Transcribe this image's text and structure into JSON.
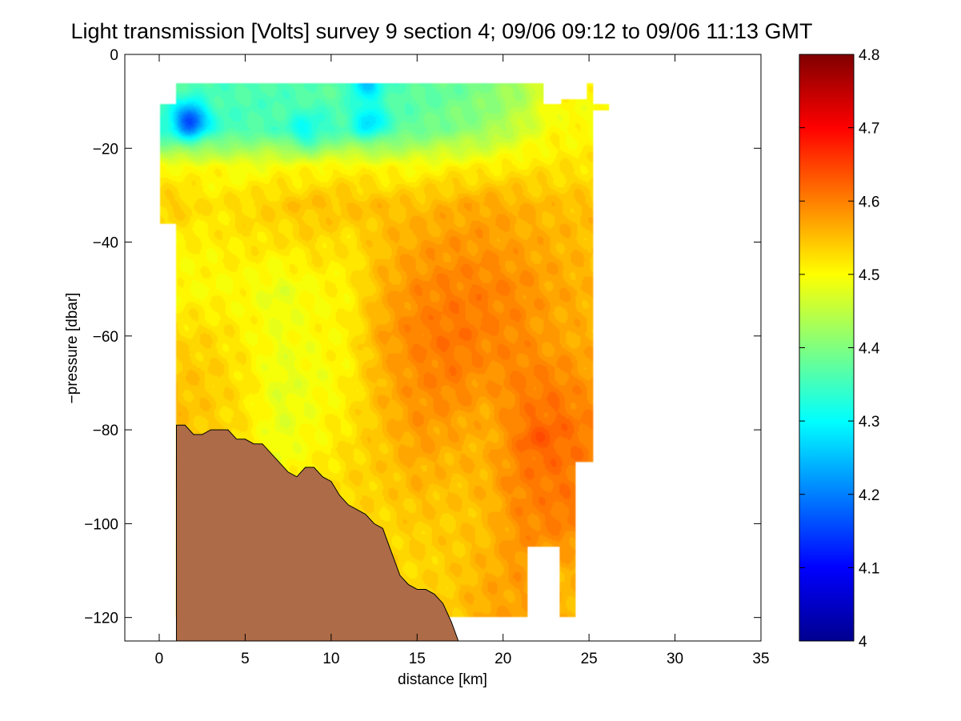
{
  "chart_data": {
    "type": "heatmap",
    "title": "Light transmission [Volts] survey 9 section 4; 09/06 09:12 to 09/06 11:13 GMT",
    "xlabel": "distance [km]",
    "ylabel": "−pressure [dbar]",
    "xlim": [
      -2,
      35
    ],
    "ylim": [
      -125,
      0
    ],
    "x_ticks": [
      0,
      5,
      10,
      15,
      20,
      25,
      30,
      35
    ],
    "x_tick_labels": [
      "0",
      "5",
      "10",
      "15",
      "20",
      "25",
      "30",
      "35"
    ],
    "y_ticks": [
      0,
      -20,
      -40,
      -60,
      -80,
      -100,
      -120
    ],
    "y_tick_labels": [
      "0",
      "−20",
      "−40",
      "−60",
      "−80",
      "−100",
      "−120"
    ],
    "grid": false,
    "colorbar": {
      "colormap": "jet",
      "range": [
        4.0,
        4.8
      ],
      "ticks": [
        4.0,
        4.1,
        4.2,
        4.3,
        4.4,
        4.5,
        4.6,
        4.7,
        4.8
      ],
      "tick_labels": [
        "4",
        "4.1",
        "4.2",
        "4.3",
        "4.4",
        "4.5",
        "4.6",
        "4.7",
        "4.8"
      ]
    },
    "field": {
      "x_km": [
        1,
        3,
        5,
        7,
        9,
        11,
        13,
        15,
        17,
        19,
        21,
        23,
        25
      ],
      "depth": [
        -8,
        -16,
        -24,
        -32,
        -40,
        -50,
        -60,
        -70,
        -80,
        -90,
        -100,
        -110,
        -118
      ],
      "values": [
        [
          4.36,
          4.36,
          4.36,
          4.36,
          4.37,
          4.37,
          4.36,
          4.37,
          4.38,
          4.4,
          4.43,
          4.5,
          4.5
        ],
        [
          4.33,
          4.34,
          4.36,
          4.36,
          4.34,
          4.36,
          4.36,
          4.38,
          4.4,
          4.42,
          4.46,
          4.5,
          4.5
        ],
        [
          4.5,
          4.5,
          4.49,
          4.5,
          4.5,
          4.51,
          4.5,
          4.5,
          4.51,
          4.51,
          4.52,
          4.52,
          4.52
        ],
        [
          4.54,
          4.52,
          4.53,
          4.54,
          4.55,
          4.55,
          4.55,
          4.55,
          4.56,
          4.57,
          4.56,
          4.55,
          4.55
        ],
        [
          4.51,
          4.51,
          4.52,
          4.52,
          4.53,
          4.52,
          4.55,
          4.57,
          4.58,
          4.58,
          4.57,
          4.56,
          4.55
        ],
        [
          4.5,
          4.5,
          4.5,
          4.48,
          4.5,
          4.51,
          4.56,
          4.59,
          4.6,
          4.6,
          4.59,
          4.57,
          4.56
        ],
        [
          4.53,
          4.53,
          4.51,
          4.49,
          4.5,
          4.51,
          4.57,
          4.6,
          4.61,
          4.6,
          4.59,
          4.57,
          4.56
        ],
        [
          4.55,
          4.54,
          4.52,
          4.48,
          4.49,
          4.51,
          4.56,
          4.59,
          4.6,
          4.58,
          4.6,
          4.6,
          4.58
        ],
        [
          4.55,
          4.54,
          4.52,
          4.48,
          4.5,
          4.52,
          4.55,
          4.58,
          4.57,
          4.56,
          4.6,
          4.62,
          4.6
        ],
        [
          4.54,
          4.53,
          4.52,
          4.5,
          4.51,
          4.53,
          4.54,
          4.56,
          4.55,
          4.56,
          4.6,
          4.61,
          4.6
        ],
        [
          4.53,
          4.53,
          4.52,
          4.51,
          4.52,
          4.53,
          4.53,
          4.54,
          4.54,
          4.55,
          4.59,
          4.6,
          4.6
        ],
        [
          4.52,
          4.52,
          4.52,
          4.52,
          4.52,
          4.53,
          4.53,
          4.53,
          4.54,
          4.56,
          4.58,
          4.56,
          4.56
        ],
        [
          4.52,
          4.52,
          4.52,
          4.52,
          4.52,
          4.53,
          4.53,
          4.53,
          4.54,
          4.57,
          4.57,
          4.56,
          4.55
        ]
      ],
      "anomalies": [
        {
          "x_km": 1.8,
          "depth": -14,
          "value": 4.15
        },
        {
          "x_km": 12.2,
          "depth": -14,
          "value": 4.27
        },
        {
          "x_km": 12.0,
          "depth": -6,
          "value": 4.25
        },
        {
          "x_km": 8.5,
          "depth": -16,
          "value": 4.31
        },
        {
          "x_km": 22.0,
          "depth": -82,
          "value": 4.63
        }
      ]
    },
    "data_extent": {
      "x_km": [
        0,
        26.2
      ],
      "depth": [
        -120,
        -6
      ]
    },
    "bathymetry": {
      "color": "#ad6b47",
      "x_km": [
        1.0,
        1.5,
        2.0,
        2.5,
        3.0,
        3.5,
        4.0,
        4.5,
        5.0,
        5.5,
        6.0,
        6.5,
        7.0,
        7.5,
        8.0,
        8.5,
        9.0,
        9.5,
        10.0,
        10.5,
        11.0,
        11.5,
        12.0,
        12.5,
        13.0,
        13.5,
        14.0,
        14.5,
        15.0,
        15.5,
        16.0,
        16.5,
        17.0,
        17.4
      ],
      "depth": [
        -79,
        -79,
        -81,
        -81,
        -80,
        -80,
        -80,
        -82,
        -82,
        -83,
        -83,
        -85,
        -87,
        -89,
        -90,
        -88,
        -88,
        -90,
        -91,
        -94,
        -96,
        -97,
        -98,
        -100,
        -101,
        -106,
        -111,
        -113,
        -114,
        -114,
        -115,
        -117,
        -121,
        -125
      ]
    }
  }
}
